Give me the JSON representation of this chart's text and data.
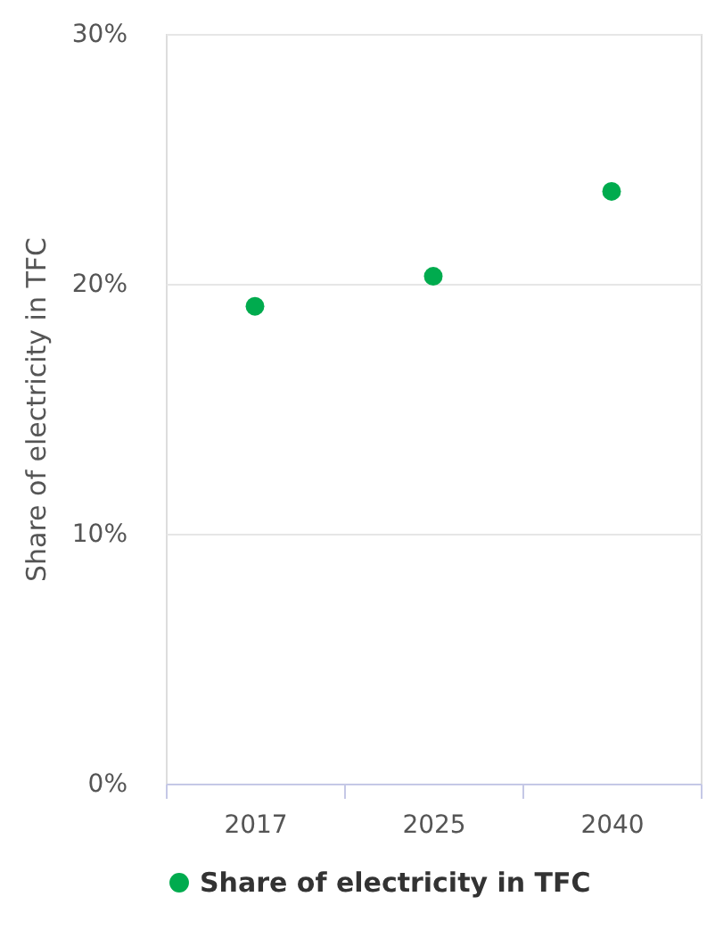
{
  "chart_data": {
    "type": "scatter",
    "ylabel": "Share of electricity in TFC",
    "categories": [
      "2017",
      "2025",
      "2040"
    ],
    "series": [
      {
        "name": "Share of electricity in TFC",
        "color": "#00ab4e",
        "values": [
          19.1,
          20.3,
          23.7
        ]
      }
    ],
    "ylim": [
      0,
      30
    ],
    "yticks": [
      {
        "value": 0,
        "label": "0%"
      },
      {
        "value": 10,
        "label": "10%"
      },
      {
        "value": 20,
        "label": "20%"
      },
      {
        "value": 30,
        "label": "30%"
      }
    ],
    "grid": "y",
    "legend": "bottom",
    "marker": "circle"
  }
}
